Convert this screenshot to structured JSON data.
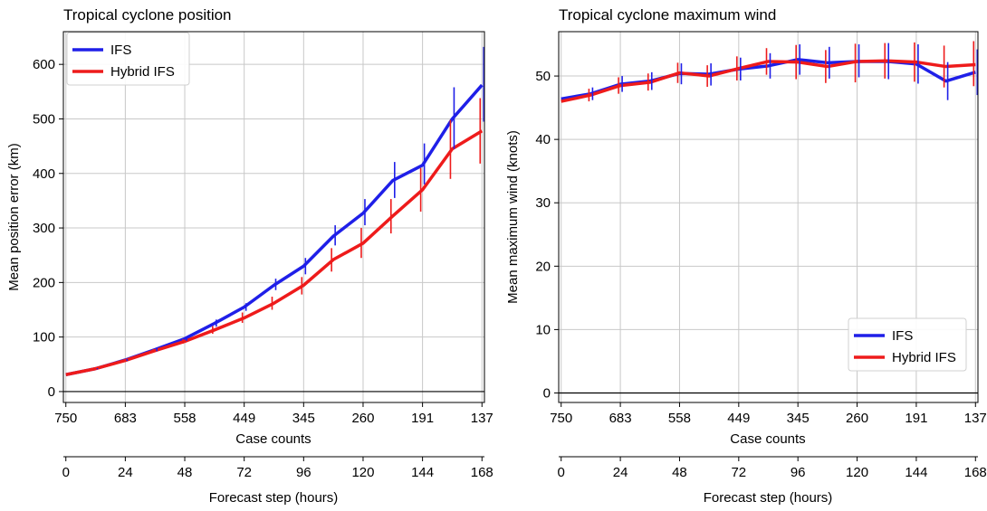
{
  "chart_data": [
    {
      "type": "line",
      "title": "Tropical cyclone position",
      "ylabel": "Mean position error (km)",
      "xlabel_top": "Case counts",
      "xlabel_bottom": "Forecast step (hours)",
      "ylim": [
        -20,
        660
      ],
      "yticks": [
        0,
        100,
        200,
        300,
        400,
        500,
        600
      ],
      "xlim": [
        -1,
        169
      ],
      "case_count_ticks": {
        "x": [
          0,
          24,
          48,
          72,
          96,
          120,
          144,
          168
        ],
        "labels": [
          "750",
          "683",
          "558",
          "449",
          "345",
          "260",
          "191",
          "137"
        ]
      },
      "forecast_ticks": {
        "x": [
          0,
          24,
          48,
          72,
          96,
          120,
          144,
          168
        ],
        "labels": [
          "0",
          "24",
          "48",
          "72",
          "96",
          "120",
          "144",
          "168"
        ]
      },
      "grid": true,
      "legend_position": "top-left",
      "x": [
        0,
        12,
        24,
        36,
        48,
        60,
        72,
        84,
        96,
        108,
        120,
        132,
        144,
        156,
        168
      ],
      "series": [
        {
          "name": "IFS",
          "color": "#1f1fe8",
          "values": [
            31,
            42,
            58,
            77,
            97,
            125,
            155,
            195,
            230,
            285,
            327,
            387,
            415,
            500,
            562
          ],
          "err_low": [
            31,
            41,
            56,
            74,
            93,
            119,
            148,
            186,
            215,
            268,
            305,
            355,
            380,
            445,
            495
          ],
          "err_high": [
            32,
            43,
            60,
            80,
            101,
            132,
            162,
            207,
            245,
            305,
            353,
            421,
            455,
            558,
            632
          ]
        },
        {
          "name": "Hybrid IFS",
          "color": "#ee1b1b",
          "values": [
            31,
            42,
            57,
            75,
            92,
            113,
            135,
            162,
            195,
            242,
            272,
            322,
            370,
            445,
            478
          ],
          "err_low": [
            31,
            41,
            55,
            72,
            88,
            106,
            126,
            150,
            178,
            220,
            245,
            290,
            330,
            390,
            418
          ],
          "err_high": [
            32,
            43,
            59,
            78,
            96,
            120,
            145,
            174,
            210,
            263,
            300,
            353,
            410,
            498,
            538
          ]
        }
      ]
    },
    {
      "type": "line",
      "title": "Tropical cyclone maximum wind",
      "ylabel": "Mean maximum wind (knots)",
      "xlabel_top": "Case counts",
      "xlabel_bottom": "Forecast step (hours)",
      "ylim": [
        -1.5,
        57
      ],
      "yticks": [
        0,
        10,
        20,
        30,
        40,
        50
      ],
      "xlim": [
        -1,
        169
      ],
      "case_count_ticks": {
        "x": [
          0,
          24,
          48,
          72,
          96,
          120,
          144,
          168
        ],
        "labels": [
          "750",
          "683",
          "558",
          "449",
          "345",
          "260",
          "191",
          "137"
        ]
      },
      "forecast_ticks": {
        "x": [
          0,
          24,
          48,
          72,
          96,
          120,
          144,
          168
        ],
        "labels": [
          "0",
          "24",
          "48",
          "72",
          "96",
          "120",
          "144",
          "168"
        ]
      },
      "grid": true,
      "legend_position": "bottom-right",
      "x": [
        0,
        12,
        24,
        36,
        48,
        60,
        72,
        84,
        96,
        108,
        120,
        132,
        144,
        156,
        168
      ],
      "series": [
        {
          "name": "IFS",
          "color": "#1f1fe8",
          "values": [
            46.4,
            47.2,
            48.7,
            49.2,
            50.4,
            50.3,
            51.1,
            51.6,
            52.6,
            52.1,
            52.3,
            52.3,
            51.9,
            49.2,
            50.6
          ],
          "err_low": [
            45.4,
            46.2,
            47.5,
            47.8,
            48.7,
            48.5,
            49.3,
            49.6,
            50.2,
            49.6,
            49.8,
            49.5,
            48.8,
            46.2,
            47.0
          ],
          "err_high": [
            47.4,
            48.2,
            50.0,
            50.6,
            52.0,
            52.0,
            52.9,
            53.6,
            55.0,
            54.6,
            55.0,
            55.2,
            55.0,
            52.2,
            54.2
          ]
        },
        {
          "name": "Hybrid IFS",
          "color": "#ee1b1b",
          "values": [
            46.0,
            47.0,
            48.5,
            49.0,
            50.5,
            50.0,
            51.2,
            52.3,
            52.2,
            51.5,
            52.3,
            52.4,
            52.2,
            51.5,
            51.8
          ],
          "err_low": [
            45.0,
            46.0,
            47.2,
            47.7,
            48.9,
            48.3,
            49.3,
            50.2,
            49.5,
            48.9,
            49.0,
            49.6,
            49.1,
            48.2,
            48.4
          ],
          "err_high": [
            47.0,
            48.0,
            49.8,
            50.4,
            52.1,
            51.7,
            53.1,
            54.4,
            54.9,
            54.1,
            55.1,
            55.2,
            55.3,
            54.8,
            55.5
          ]
        }
      ]
    }
  ]
}
